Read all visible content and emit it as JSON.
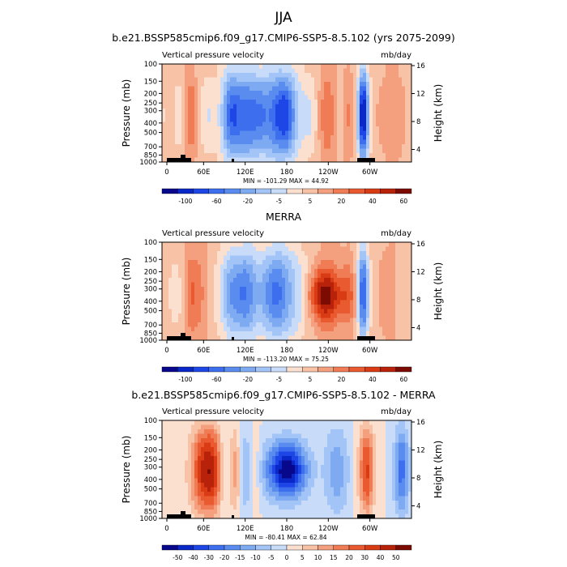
{
  "page": {
    "main_title": "JJA"
  },
  "chart_data": [
    {
      "type": "heatmap",
      "title": "b.e21.BSSP585cmip6.f09_g17.CMIP6-SSP5-8.5.102 (yrs 2075-2099)",
      "left_label": "Vertical pressure velocity",
      "right_label": "mb/day",
      "ylabel": "Pressure (mb)",
      "y2label": "Height (km)",
      "pressure_ticks": [
        "100",
        "150",
        "200",
        "250",
        "300",
        "400",
        "500",
        "700",
        "850",
        "1000"
      ],
      "height_ticks": [
        "16",
        "12",
        "8",
        "4"
      ],
      "lon_ticks": [
        "0",
        "60E",
        "120E",
        "180",
        "120W",
        "60W"
      ],
      "stats": "MIN = -101.29   MAX = 44.92",
      "colorbar_labels": [
        "-100",
        "-60",
        "-20",
        "-5",
        "5",
        "20",
        "40",
        "60"
      ],
      "color_levels": 16
    },
    {
      "type": "heatmap",
      "title": "MERRA",
      "left_label": "Vertical pressure velocity",
      "right_label": "mb/day",
      "ylabel": "Pressure (mb)",
      "y2label": "Height (km)",
      "pressure_ticks": [
        "100",
        "150",
        "200",
        "250",
        "300",
        "400",
        "500",
        "700",
        "850",
        "1000"
      ],
      "height_ticks": [
        "16",
        "12",
        "8",
        "4"
      ],
      "lon_ticks": [
        "0",
        "60E",
        "120E",
        "180",
        "120W",
        "60W"
      ],
      "stats": "MIN = -113.20   MAX = 75.25",
      "colorbar_labels": [
        "-100",
        "-60",
        "-20",
        "-5",
        "5",
        "20",
        "40",
        "60"
      ],
      "color_levels": 16
    },
    {
      "type": "heatmap",
      "title": "b.e21.BSSP585cmip6.f09_g17.CMIP6-SSP5-8.5.102 - MERRA",
      "left_label": "Vertical pressure velocity",
      "right_label": "mb/day",
      "ylabel": "Pressure (mb)",
      "y2label": "Height (km)",
      "pressure_ticks": [
        "100",
        "150",
        "200",
        "250",
        "300",
        "400",
        "500",
        "700",
        "850",
        "1000"
      ],
      "height_ticks": [
        "16",
        "12",
        "8",
        "4"
      ],
      "lon_ticks": [
        "0",
        "60E",
        "120E",
        "180",
        "120W",
        "60W"
      ],
      "stats": "MIN = -80.41   MAX = 62.84",
      "colorbar_labels": [
        "-50",
        "-40",
        "-30",
        "-20",
        "-15",
        "-10",
        "-5",
        "0",
        "5",
        "10",
        "15",
        "20",
        "30",
        "40",
        "50"
      ],
      "color_levels": 16
    }
  ],
  "palette": [
    "#08088c",
    "#0a28c8",
    "#1e46e6",
    "#3c6eee",
    "#5a8cf0",
    "#7eaaf2",
    "#a2c4f6",
    "#c8dcfa",
    "#fbe0d0",
    "#f7c2a6",
    "#f4a07e",
    "#f07c56",
    "#e95a30",
    "#d93c14",
    "#b8220a",
    "#7c0c02"
  ]
}
